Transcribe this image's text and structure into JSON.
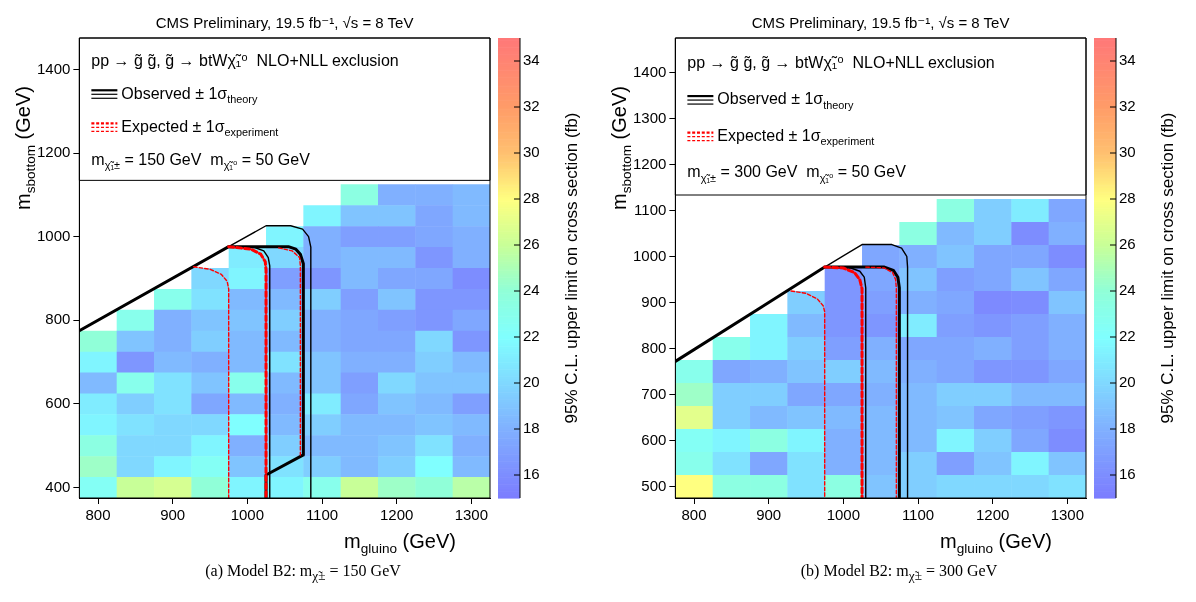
{
  "chart_data": [
    {
      "type": "heatmap",
      "title": "CMS Preliminary, 19.5 fb⁻¹, √s = 8 TeV",
      "xlabel": "m$_{gluino}$ (GeV)",
      "ylabel": "m$_{sbottom}$ (GeV)",
      "clabel": "95% C.L. upper limit on cross section (fb)",
      "legend_title": "pp → g̃ g̃, g̃ → btWχ̃₁⁰  NLO+NLL exclusion",
      "legend": "top",
      "annotations": [
        "m$_{χ̃₁±}$ = 150 GeV  m$_{χ̃₁⁰}$ = 50 GeV",
        "(a) Model B2: m$_{χ̃±}$ = 150 GeV"
      ],
      "xlim": [
        775,
        1325
      ],
      "xticks": [
        800,
        900,
        1000,
        1100,
        1200,
        1300
      ],
      "ylim": [
        375,
        1475
      ],
      "yticks": [
        400,
        600,
        800,
        1000,
        1200,
        1400
      ],
      "clim": [
        15,
        35
      ],
      "cticks": [
        16,
        18,
        20,
        22,
        24,
        26,
        28,
        30,
        32,
        34
      ],
      "x": [
        800,
        850,
        900,
        950,
        1000,
        1050,
        1100,
        1150,
        1200,
        1250,
        1300
      ],
      "y": [
        1100,
        1050,
        1000,
        950,
        900,
        850,
        800,
        750,
        700,
        650,
        600,
        550,
        500,
        450,
        400
      ],
      "cells": [
        [
          null,
          null,
          null,
          null,
          null,
          null,
          null,
          23.5,
          18,
          18,
          18.5
        ],
        [
          null,
          null,
          null,
          null,
          null,
          null,
          21.5,
          19,
          19,
          17.5,
          18.5
        ],
        [
          null,
          null,
          null,
          null,
          null,
          21.5,
          18,
          17,
          17,
          17.5,
          18
        ],
        [
          null,
          null,
          null,
          null,
          21,
          20,
          18,
          18.5,
          18.5,
          16.5,
          18
        ],
        [
          null,
          null,
          null,
          20,
          21.5,
          17,
          16.5,
          18.5,
          17.5,
          17.5,
          16
        ],
        [
          null,
          null,
          23,
          20.5,
          18.5,
          18.5,
          19.5,
          17,
          19,
          16.5,
          16.5
        ],
        [
          null,
          23,
          18,
          19,
          19,
          19.5,
          18,
          17.5,
          17,
          16.5,
          17.5
        ],
        [
          24,
          19,
          18,
          19.5,
          18.5,
          18.5,
          18,
          17.5,
          17.5,
          20,
          16.5
        ],
        [
          21.5,
          16.5,
          18.5,
          18,
          18.5,
          20.5,
          19,
          18,
          18,
          19.5,
          18.5
        ],
        [
          18.5,
          23,
          20.5,
          19,
          23,
          18.5,
          19,
          17,
          20,
          19,
          19
        ],
        [
          21,
          19.5,
          20.5,
          17.5,
          18.5,
          18,
          21,
          17.5,
          19,
          18.5,
          17
        ],
        [
          21.5,
          20.5,
          20,
          20,
          22,
          18.5,
          19.5,
          18.5,
          18.5,
          19,
          18.5
        ],
        [
          23.5,
          20,
          20,
          21.5,
          18,
          19.5,
          18.5,
          18.5,
          19,
          20.5,
          18
        ],
        [
          24.5,
          20,
          21.5,
          22.5,
          19,
          20.5,
          19.5,
          18.5,
          19.5,
          22,
          18.5
        ],
        [
          22.5,
          26,
          26.5,
          24,
          21.5,
          21.5,
          23,
          26,
          24.5,
          24,
          25.5
        ]
      ],
      "series": [
        {
          "type": "line",
          "name": "Observed ± 1σ$_{theory}$",
          "color": "#000000",
          "line_style": "solid",
          "x": [
            775,
            975,
            1055,
            1065,
            1071,
            1075,
            1075,
            1025,
            1025
          ],
          "values": [
            775,
            976,
            976,
            970,
            958,
            935,
            478,
            430,
            375
          ]
        },
        {
          "type": "line",
          "color": "#000000",
          "line_style": "solid",
          "x": [
            775,
            975,
            1025,
            1058,
            1074,
            1082,
            1085,
            1085
          ],
          "values": [
            775,
            976,
            1026,
            1026,
            1018,
            1000,
            975,
            375
          ]
        },
        {
          "type": "line",
          "color": "#000000",
          "line_style": "solid",
          "x": [
            975,
            1010,
            1022,
            1028,
            1030,
            1030
          ],
          "values": [
            976,
            974,
            966,
            950,
            930,
            375
          ]
        },
        {
          "type": "line",
          "name": "Expected ± 1σ$_{experiment}$",
          "color": "#ff0000",
          "line_style": "dashed",
          "x": [
            975,
            1005,
            1018,
            1024,
            1025,
            1025
          ],
          "values": [
            976,
            970,
            958,
            940,
            920,
            375
          ]
        },
        {
          "type": "line",
          "color": "#ff0000",
          "line_style": "dashed",
          "x": [
            1042,
            1060,
            1070,
            1071,
            1071
          ],
          "values": [
            973,
            966,
            950,
            930,
            478
          ]
        },
        {
          "type": "line",
          "color": "#ff0000",
          "line_style": "dashed",
          "x": [
            928,
            950,
            965,
            973,
            975,
            975
          ],
          "values": [
            928,
            922,
            910,
            893,
            875,
            375
          ]
        }
      ]
    },
    {
      "type": "heatmap",
      "title": "CMS Preliminary, 19.5 fb⁻¹, √s = 8 TeV",
      "xlabel": "m$_{gluino}$ (GeV)",
      "ylabel": "m$_{sbottom}$ (GeV)",
      "clabel": "95% C.L. upper limit on cross section (fb)",
      "legend_title": "pp → g̃ g̃, g̃ → btWχ̃₁⁰  NLO+NLL exclusion",
      "legend": "top",
      "annotations": [
        "m$_{χ̃₁±}$ = 300 GeV  m$_{χ̃₁⁰}$ = 50 GeV",
        "(b) Model B2: m$_{χ̃±}$ = 300 GeV"
      ],
      "xlim": [
        775,
        1325
      ],
      "xticks": [
        800,
        900,
        1000,
        1100,
        1200,
        1300
      ],
      "ylim": [
        475,
        1475
      ],
      "yticks": [
        500,
        600,
        700,
        800,
        900,
        1000,
        1100,
        1200,
        1300,
        1400
      ],
      "clim": [
        15,
        35
      ],
      "cticks": [
        16,
        18,
        20,
        22,
        24,
        26,
        28,
        30,
        32,
        34
      ],
      "x": [
        800,
        850,
        900,
        950,
        1000,
        1050,
        1100,
        1150,
        1200,
        1250,
        1300
      ],
      "y": [
        1100,
        1050,
        1000,
        950,
        900,
        850,
        800,
        750,
        700,
        650,
        600,
        550,
        500
      ],
      "cells": [
        [
          null,
          null,
          null,
          null,
          null,
          null,
          null,
          23.5,
          19.5,
          21,
          17.5
        ],
        [
          null,
          null,
          null,
          null,
          null,
          null,
          23.5,
          18.5,
          19.5,
          16,
          18
        ],
        [
          null,
          null,
          null,
          null,
          null,
          17.5,
          18,
          19,
          17.5,
          17.5,
          16
        ],
        [
          null,
          null,
          null,
          null,
          16.5,
          17.5,
          19,
          17,
          17.5,
          19,
          17.5
        ],
        [
          null,
          null,
          null,
          19.5,
          16.5,
          17,
          18,
          17.5,
          15.8,
          16,
          19
        ],
        [
          null,
          null,
          21.5,
          18.5,
          16.5,
          16.5,
          21,
          17,
          16.5,
          17,
          18
        ],
        [
          null,
          23,
          21.5,
          19.5,
          17,
          18,
          17.5,
          17.5,
          18,
          17,
          18
        ],
        [
          23,
          17.5,
          18,
          19,
          19.5,
          18.5,
          18,
          17.5,
          16.5,
          16.5,
          17.5
        ],
        [
          24.5,
          19.5,
          19.5,
          17.5,
          17.5,
          18,
          18.5,
          19.5,
          19.5,
          18.5,
          18.5
        ],
        [
          27,
          19.5,
          18.5,
          19,
          18.5,
          18.5,
          18.5,
          19,
          17.5,
          17,
          16.5
        ],
        [
          22.5,
          21.5,
          23.5,
          21.5,
          18,
          18.5,
          18.5,
          21.5,
          19.5,
          17.5,
          16
        ],
        [
          23,
          20.5,
          17.5,
          20.5,
          18,
          18.5,
          19.5,
          17,
          19,
          21.5,
          19
        ],
        [
          28,
          23.5,
          23.5,
          20.5,
          23.5,
          19,
          19.5,
          20,
          20,
          20,
          20.5
        ]
      ],
      "series": [
        {
          "type": "line",
          "name": "Observed ± 1σ$_{theory}$",
          "color": "#000000",
          "line_style": "solid",
          "x": [
            775,
            975,
            1055,
            1067,
            1073,
            1075,
            1075
          ],
          "values": [
            772,
            977,
            977,
            970,
            955,
            932,
            475
          ]
        },
        {
          "type": "line",
          "color": "#000000",
          "line_style": "solid",
          "x": [
            975,
            1025,
            1065,
            1078,
            1085,
            1086,
            1086
          ],
          "values": [
            977,
            1026,
            1026,
            1018,
            1000,
            977,
            475
          ]
        },
        {
          "type": "line",
          "color": "#000000",
          "line_style": "solid",
          "x": [
            975,
            1010,
            1022,
            1028,
            1030,
            1030
          ],
          "values": [
            977,
            975,
            968,
            955,
            932,
            475
          ]
        },
        {
          "type": "line",
          "name": "Expected ± 1σ$_{experiment}$",
          "color": "#ff0000",
          "line_style": "dashed",
          "x": [
            975,
            1000,
            1015,
            1022,
            1025,
            1025
          ],
          "values": [
            977,
            975,
            965,
            950,
            930,
            475
          ]
        },
        {
          "type": "line",
          "color": "#ff0000",
          "line_style": "dashed",
          "x": [
            1030,
            1055,
            1066,
            1070,
            1071,
            1071
          ],
          "values": [
            977,
            975,
            965,
            950,
            930,
            475
          ]
        },
        {
          "type": "line",
          "color": "#ff0000",
          "line_style": "dashed",
          "x": [
            930,
            950,
            965,
            973,
            975,
            975
          ],
          "values": [
            925,
            920,
            908,
            893,
            880,
            475
          ]
        }
      ]
    }
  ]
}
